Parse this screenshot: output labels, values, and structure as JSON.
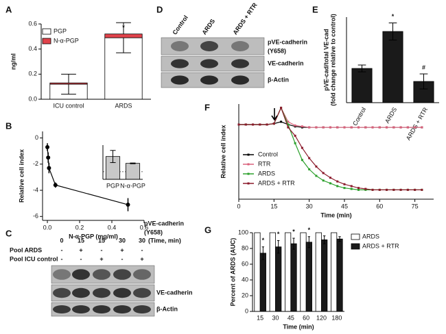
{
  "panel_labels": [
    "A",
    "B",
    "C",
    "D",
    "E",
    "F",
    "G"
  ],
  "chart_data": [
    {
      "type": "bar",
      "stacked": true,
      "categories": [
        "ICU control",
        "ARDS"
      ],
      "series": [
        {
          "name": "PGP",
          "color": "#ffffff",
          "values": [
            0.12,
            0.49
          ],
          "errors": [
            0.08,
            0.12
          ]
        },
        {
          "name": "N-α-PGP",
          "color": "#e0434b",
          "values": [
            0.01,
            0.03
          ]
        }
      ],
      "annotations": [
        null,
        "*"
      ],
      "y_label": "ng/ml",
      "ylim": [
        0,
        0.6
      ],
      "yticks": [
        {
          "value": 0,
          "label": "0.0"
        },
        0.2,
        0.4,
        0.6
      ]
    },
    {
      "type": "line",
      "x_label": "N-α-PGP (mg/ml)",
      "y_label": "Relative cell index",
      "x": [
        0,
        0.005,
        0.01,
        0.05,
        0.5
      ],
      "values": [
        -0.7,
        -1.5,
        -2.3,
        -3.6,
        -5.1
      ],
      "errors": [
        0.3,
        0.4,
        0.4,
        0.2,
        0.5
      ],
      "color": "#000000",
      "xlim": [
        -0.03,
        0.6
      ],
      "xticks": [
        {
          "value": 0,
          "label": "0.0"
        },
        0.2,
        0.4,
        0.6
      ],
      "ylim": [
        -6.3,
        0.5
      ],
      "yticks": [
        0,
        -2,
        -4,
        -6
      ]
    },
    {
      "type": "bar",
      "categories": [
        "PGP",
        "N-α-PGP"
      ],
      "values": [
        3,
        2.1
      ],
      "errors": [
        0.8,
        0.05
      ],
      "color": "#c8c8c8",
      "ylim": [
        0,
        4.5
      ],
      "reference_line": 1
    },
    {
      "type": "bar",
      "categories": [
        "Control",
        "ARDS",
        "ARDS + RTR"
      ],
      "values": [
        1,
        2.08,
        0.62
      ],
      "errors": [
        0.1,
        0.25,
        0.22
      ],
      "color": "#1a1a1a",
      "annotations": [
        null,
        "*",
        "#"
      ],
      "y_label": [
        "pVE-cad/total VE-cad",
        "(fold change relative to control)"
      ],
      "ylim": [
        0,
        2.5
      ]
    },
    {
      "type": "line",
      "x_label": "Time (min)",
      "y_label": "Relative cell index",
      "x": [
        0,
        3,
        6,
        9,
        12,
        15,
        18,
        21,
        24,
        27,
        30,
        33,
        36,
        39,
        42,
        45,
        48,
        51,
        54,
        57,
        60,
        63,
        66,
        69,
        72,
        75,
        78
      ],
      "xlim": [
        0,
        83
      ],
      "xticks": [
        0,
        15,
        30,
        45,
        60,
        75
      ],
      "ylim": [
        -8,
        2.2
      ],
      "series": [
        {
          "name": "Control",
          "color": "#000000",
          "values": [
            0,
            0,
            0,
            0,
            0,
            0.1,
            0.3,
            0,
            -0.2,
            -0.3,
            -0.3,
            -0.3,
            -0.3,
            -0.3,
            -0.3,
            -0.3,
            -0.3,
            -0.3,
            -0.3,
            -0.3,
            -0.3,
            -0.3,
            -0.3,
            -0.3,
            -0.3,
            -0.3,
            -0.3
          ]
        },
        {
          "name": "RTR",
          "color": "#d9607a",
          "values": [
            0,
            0,
            0,
            0,
            0,
            0.1,
            1.8,
            0.3,
            -0.1,
            -0.2,
            -0.3,
            -0.3,
            -0.3,
            -0.3,
            -0.3,
            -0.3,
            -0.3,
            -0.3,
            -0.3,
            -0.3,
            -0.3,
            -0.3,
            -0.3,
            -0.3,
            -0.3,
            -0.3,
            -0.3
          ]
        },
        {
          "name": "ARDS",
          "color": "#2ca02c",
          "values": [
            0,
            0,
            0,
            0,
            0,
            0.1,
            1.8,
            0,
            -2,
            -3.8,
            -4.8,
            -5.5,
            -6,
            -6.3,
            -6.6,
            -6.8,
            -6.9,
            -7,
            -7,
            -7,
            -7,
            -7,
            -7,
            -7,
            -7,
            -7,
            -7
          ]
        },
        {
          "name": "ARDS + RTR",
          "color": "#8b1a2b",
          "values": [
            0,
            0,
            0,
            0,
            0,
            0.1,
            1.8,
            -0.3,
            -1.2,
            -2.5,
            -3.6,
            -4.5,
            -5.2,
            -5.7,
            -6.1,
            -6.4,
            -6.6,
            -6.8,
            -6.9,
            -7,
            -7,
            -7,
            -7,
            -7,
            -7,
            -7,
            -7
          ]
        }
      ]
    },
    {
      "type": "bar",
      "categories": [
        "15",
        "30",
        "45",
        "60",
        "120",
        "180"
      ],
      "x_label": "Time (min)",
      "y_label": "Percent of ARDS (AUC)",
      "ylim": [
        0,
        100
      ],
      "yticks": [
        0,
        20,
        40,
        60,
        80,
        100
      ],
      "annotations": [
        "*",
        "*",
        "*",
        "*",
        null,
        null
      ],
      "series": [
        {
          "name": "ARDS",
          "color": "#ffffff",
          "values": [
            100,
            100,
            100,
            100,
            100,
            100
          ]
        },
        {
          "name": "ARDS + RTR",
          "color": "#1a1a1a",
          "values": [
            74,
            82,
            86,
            88,
            91,
            92
          ],
          "errors": [
            8,
            8,
            7,
            7,
            5,
            3
          ]
        }
      ]
    }
  ],
  "blot_c": {
    "times": [
      "0",
      "15",
      "15",
      "30",
      "30"
    ],
    "time_unit": "(Time, min)",
    "rows": [
      {
        "label": "Pool ARDS",
        "signs": [
          "-",
          "+",
          "-",
          "+",
          "-"
        ]
      },
      {
        "label": "Pool ICU control",
        "signs": [
          "-",
          "-",
          "+",
          "-",
          "+"
        ]
      }
    ],
    "top_band_label": [
      "pVE-cadherin",
      "(Y658)"
    ],
    "bands": [
      "VE-cadherin",
      "β-Actin"
    ]
  },
  "blot_d": {
    "lanes": [
      "Control",
      "ARDS",
      "ARDS + RTR"
    ],
    "bands": [
      [
        "pVE-cadherin",
        "(Y658)"
      ],
      [
        "VE-cadherin"
      ],
      [
        "β-Actin"
      ]
    ]
  }
}
